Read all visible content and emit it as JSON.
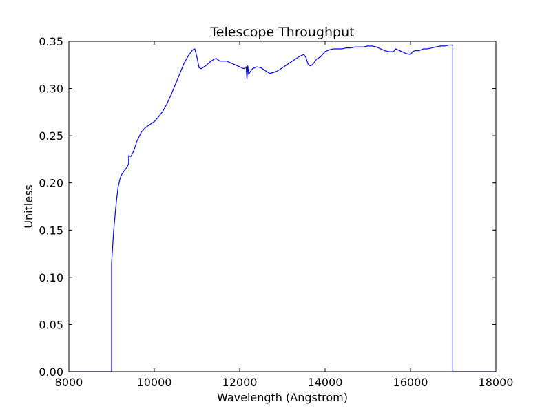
{
  "chart_data": {
    "type": "line",
    "title": "Telescope Throughput",
    "xlabel": "Wavelength (Angstrom)",
    "ylabel": "Unitless",
    "xlim": [
      8000,
      18000
    ],
    "ylim": [
      0.0,
      0.35
    ],
    "xticks": [
      8000,
      10000,
      12000,
      14000,
      16000,
      18000
    ],
    "yticks": [
      0.0,
      0.05,
      0.1,
      0.15,
      0.2,
      0.25,
      0.3,
      0.35
    ],
    "xtick_labels": [
      "8000",
      "10000",
      "12000",
      "14000",
      "16000",
      "18000"
    ],
    "ytick_labels": [
      "0.00",
      "0.05",
      "0.10",
      "0.15",
      "0.20",
      "0.25",
      "0.30",
      "0.35"
    ],
    "grid": false,
    "line_color": "#0000ff",
    "series": [
      {
        "x": [
          8000,
          9000,
          9000,
          9050,
          9100,
          9150,
          9200,
          9250,
          9300,
          9350,
          9400,
          9400,
          9450,
          9500,
          9550,
          9600,
          9700,
          9800,
          9900,
          10000,
          10100,
          10200,
          10300,
          10400,
          10500,
          10600,
          10700,
          10800,
          10900,
          10950,
          11000,
          11050,
          11100,
          11200,
          11300,
          11400,
          11450,
          11500,
          11550,
          11700,
          11800,
          11900,
          12000,
          12100,
          12150,
          12170,
          12190,
          12210,
          12250,
          12300,
          12400,
          12500,
          12600,
          12700,
          12800,
          12900,
          13000,
          13100,
          13200,
          13300,
          13400,
          13500,
          13550,
          13600,
          13650,
          13700,
          13800,
          13900,
          14000,
          14100,
          14200,
          14300,
          14400,
          14500,
          14600,
          14700,
          14800,
          14900,
          15000,
          15100,
          15200,
          15300,
          15400,
          15500,
          15600,
          15650,
          15700,
          15750,
          15800,
          15900,
          16000,
          16050,
          16100,
          16200,
          16300,
          16400,
          16500,
          16600,
          16700,
          16800,
          16900,
          16990,
          16990,
          17000,
          18000
        ],
        "y": [
          0.0,
          0.0,
          0.115,
          0.15,
          0.175,
          0.195,
          0.205,
          0.21,
          0.213,
          0.216,
          0.22,
          0.229,
          0.228,
          0.232,
          0.238,
          0.245,
          0.254,
          0.259,
          0.262,
          0.265,
          0.27,
          0.276,
          0.284,
          0.294,
          0.305,
          0.316,
          0.327,
          0.335,
          0.341,
          0.342,
          0.333,
          0.322,
          0.321,
          0.324,
          0.328,
          0.331,
          0.332,
          0.33,
          0.329,
          0.329,
          0.327,
          0.325,
          0.323,
          0.321,
          0.323,
          0.31,
          0.324,
          0.315,
          0.318,
          0.321,
          0.323,
          0.322,
          0.319,
          0.316,
          0.317,
          0.319,
          0.322,
          0.325,
          0.328,
          0.331,
          0.334,
          0.336,
          0.333,
          0.326,
          0.324,
          0.325,
          0.331,
          0.334,
          0.339,
          0.341,
          0.342,
          0.342,
          0.342,
          0.343,
          0.343,
          0.344,
          0.344,
          0.344,
          0.345,
          0.345,
          0.344,
          0.342,
          0.34,
          0.339,
          0.339,
          0.342,
          0.341,
          0.34,
          0.339,
          0.337,
          0.336,
          0.339,
          0.34,
          0.34,
          0.342,
          0.342,
          0.343,
          0.344,
          0.345,
          0.345,
          0.346,
          0.346,
          0.0,
          0.0,
          0.0
        ]
      }
    ]
  }
}
